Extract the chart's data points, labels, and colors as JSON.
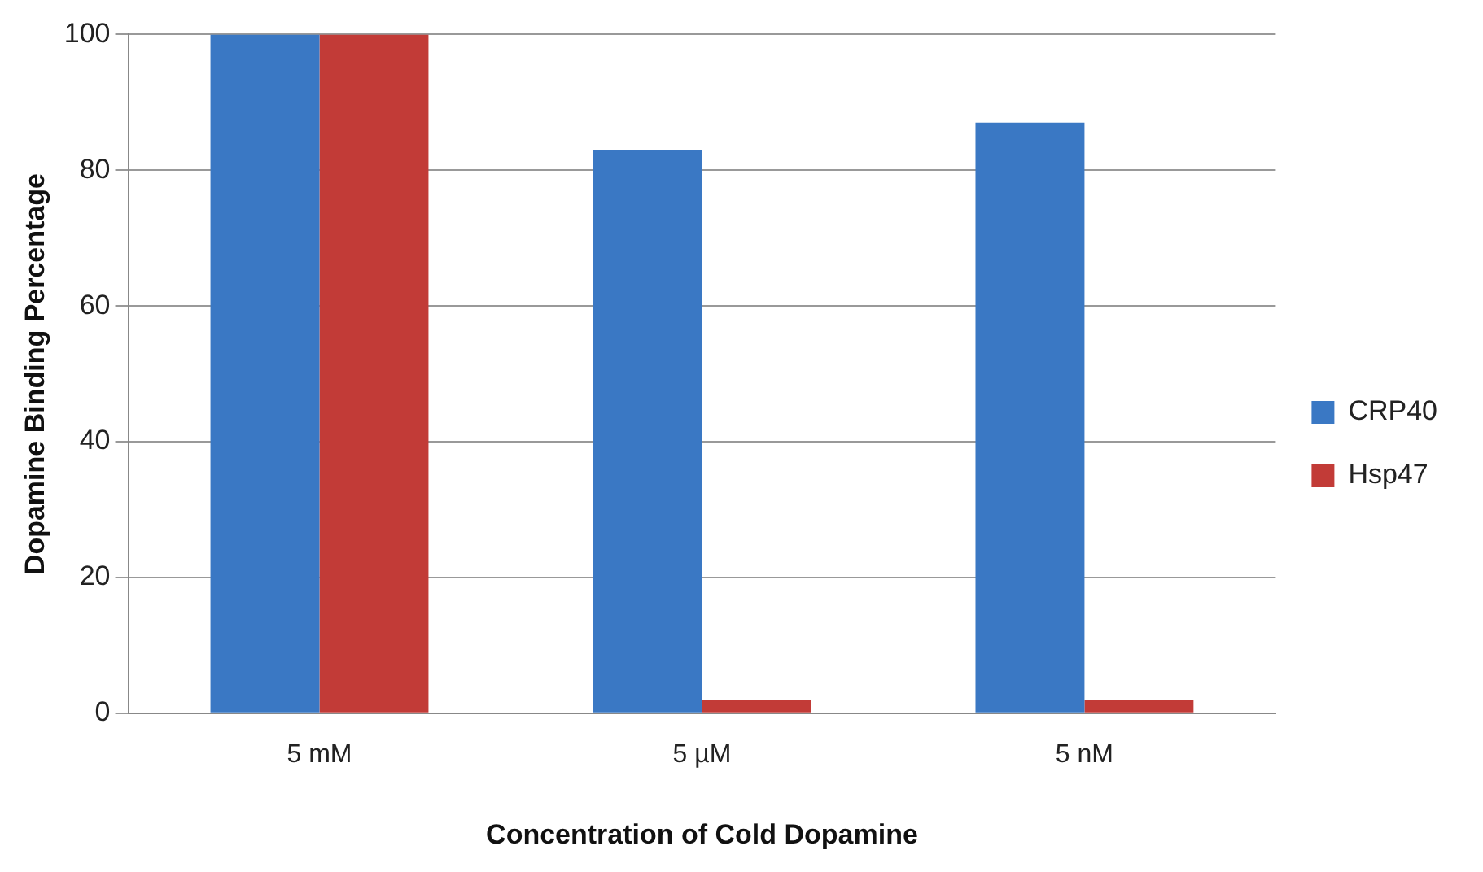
{
  "chart_data": {
    "type": "bar",
    "xlabel": "Concentration of Cold Dopamine",
    "ylabel": "Dopamine Binding Percentage",
    "categories": [
      "5 mM",
      "5 µM",
      "5 nM"
    ],
    "series": [
      {
        "name": "CRP40",
        "color": "#3a78c4",
        "values": [
          100,
          83,
          87
        ]
      },
      {
        "name": "Hsp47",
        "color": "#c23b37",
        "values": [
          100,
          2,
          2
        ]
      }
    ],
    "ylim": [
      0,
      100
    ],
    "yticks": [
      0,
      20,
      40,
      60,
      80,
      100
    ],
    "grid": "y",
    "legend": "right"
  }
}
